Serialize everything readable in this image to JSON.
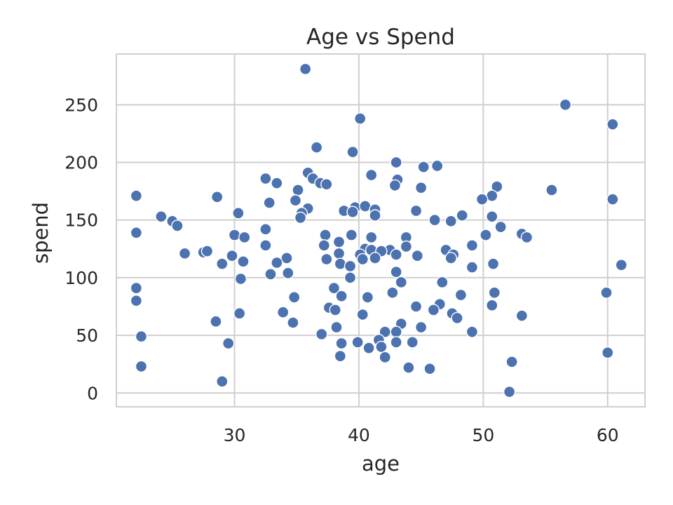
{
  "chart_data": {
    "type": "scatter",
    "title": "Age vs Spend",
    "xlabel": "age",
    "ylabel": "spend",
    "xlim": [
      20.5,
      63
    ],
    "ylim": [
      -12,
      294
    ],
    "xticks": [
      30,
      40,
      50,
      60
    ],
    "yticks": [
      0,
      50,
      100,
      150,
      200,
      250
    ],
    "grid": true,
    "color": "#4C72B0",
    "points": [
      [
        35.7,
        281
      ],
      [
        40.1,
        238
      ],
      [
        56.6,
        250
      ],
      [
        60.4,
        233
      ],
      [
        36.6,
        213
      ],
      [
        39.5,
        209
      ],
      [
        43.0,
        200
      ],
      [
        45.2,
        196
      ],
      [
        46.3,
        197
      ],
      [
        35.9,
        191
      ],
      [
        36.3,
        186
      ],
      [
        32.5,
        186
      ],
      [
        41.0,
        189
      ],
      [
        43.1,
        185
      ],
      [
        33.4,
        182
      ],
      [
        36.9,
        182
      ],
      [
        37.4,
        181
      ],
      [
        42.9,
        180
      ],
      [
        45.0,
        178
      ],
      [
        51.1,
        179
      ],
      [
        35.1,
        176
      ],
      [
        55.5,
        176
      ],
      [
        22.1,
        171
      ],
      [
        28.6,
        170
      ],
      [
        50.7,
        171
      ],
      [
        60.4,
        168
      ],
      [
        32.8,
        165
      ],
      [
        34.9,
        167
      ],
      [
        49.9,
        168
      ],
      [
        35.9,
        160
      ],
      [
        39.7,
        161
      ],
      [
        40.5,
        162
      ],
      [
        44.6,
        158
      ],
      [
        30.3,
        156
      ],
      [
        35.4,
        156
      ],
      [
        38.8,
        158
      ],
      [
        39.5,
        157
      ],
      [
        41.3,
        159
      ],
      [
        41.3,
        154
      ],
      [
        35.3,
        152
      ],
      [
        24.1,
        153
      ],
      [
        48.3,
        154
      ],
      [
        50.7,
        153
      ],
      [
        25.0,
        149
      ],
      [
        25.4,
        145
      ],
      [
        46.1,
        150
      ],
      [
        47.4,
        149
      ],
      [
        32.5,
        142
      ],
      [
        51.4,
        144
      ],
      [
        22.1,
        139
      ],
      [
        30.0,
        137
      ],
      [
        30.8,
        135
      ],
      [
        37.3,
        137
      ],
      [
        39.4,
        137
      ],
      [
        41.0,
        135
      ],
      [
        43.8,
        135
      ],
      [
        50.2,
        137
      ],
      [
        53.1,
        138
      ],
      [
        53.5,
        135
      ],
      [
        37.2,
        128
      ],
      [
        38.4,
        131
      ],
      [
        32.5,
        128
      ],
      [
        40.5,
        125
      ],
      [
        41.0,
        124
      ],
      [
        42.5,
        124
      ],
      [
        43.8,
        127
      ],
      [
        47.0,
        124
      ],
      [
        49.1,
        128
      ],
      [
        26.0,
        121
      ],
      [
        27.5,
        122
      ],
      [
        27.8,
        123
      ],
      [
        29.8,
        119
      ],
      [
        38.4,
        121
      ],
      [
        40.1,
        120
      ],
      [
        41.8,
        123
      ],
      [
        43.0,
        120
      ],
      [
        44.7,
        119
      ],
      [
        47.6,
        120
      ],
      [
        37.4,
        116
      ],
      [
        40.3,
        116
      ],
      [
        41.3,
        117
      ],
      [
        34.2,
        117
      ],
      [
        47.4,
        117
      ],
      [
        29.0,
        112
      ],
      [
        30.7,
        114
      ],
      [
        33.4,
        113
      ],
      [
        38.5,
        112
      ],
      [
        39.3,
        110
      ],
      [
        50.8,
        112
      ],
      [
        61.1,
        111
      ],
      [
        43.0,
        105
      ],
      [
        49.1,
        109
      ],
      [
        32.9,
        103
      ],
      [
        34.3,
        104
      ],
      [
        30.5,
        99
      ],
      [
        39.3,
        100
      ],
      [
        43.4,
        96
      ],
      [
        46.7,
        96
      ],
      [
        59.9,
        87
      ],
      [
        22.1,
        91
      ],
      [
        38.0,
        91
      ],
      [
        42.7,
        87
      ],
      [
        48.2,
        85
      ],
      [
        50.9,
        87
      ],
      [
        34.8,
        83
      ],
      [
        38.6,
        84
      ],
      [
        40.7,
        83
      ],
      [
        22.1,
        80
      ],
      [
        37.6,
        74
      ],
      [
        38.1,
        72
      ],
      [
        44.6,
        75
      ],
      [
        46.5,
        77
      ],
      [
        50.7,
        76
      ],
      [
        33.9,
        70
      ],
      [
        30.4,
        69
      ],
      [
        40.3,
        68
      ],
      [
        46.0,
        72
      ],
      [
        47.5,
        69
      ],
      [
        47.9,
        65
      ],
      [
        53.1,
        67
      ],
      [
        28.5,
        62
      ],
      [
        34.7,
        61
      ],
      [
        38.2,
        57
      ],
      [
        43.4,
        60
      ],
      [
        45.0,
        57
      ],
      [
        22.5,
        49
      ],
      [
        37.0,
        51
      ],
      [
        42.1,
        53
      ],
      [
        43.0,
        53
      ],
      [
        49.1,
        53
      ],
      [
        29.5,
        43
      ],
      [
        38.6,
        43
      ],
      [
        39.9,
        44
      ],
      [
        41.6,
        46
      ],
      [
        41.8,
        40
      ],
      [
        43.0,
        44
      ],
      [
        44.3,
        44
      ],
      [
        40.8,
        39
      ],
      [
        38.5,
        32
      ],
      [
        42.1,
        31
      ],
      [
        60.0,
        35
      ],
      [
        22.5,
        23
      ],
      [
        44.0,
        22
      ],
      [
        45.7,
        21
      ],
      [
        52.3,
        27
      ],
      [
        29.0,
        10
      ],
      [
        52.1,
        1
      ]
    ]
  }
}
